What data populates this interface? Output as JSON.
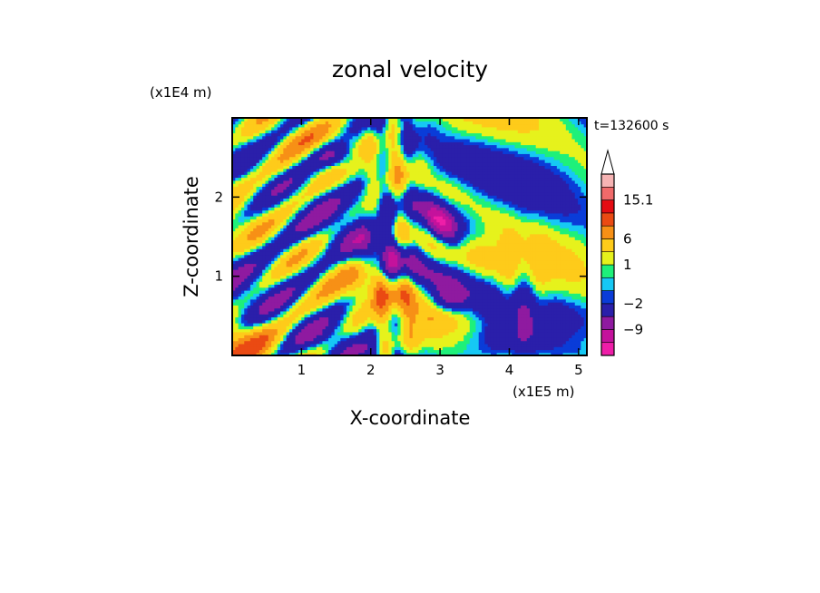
{
  "chart_data": {
    "type": "heatmap",
    "title": "zonal velocity",
    "xlabel": "X-coordinate",
    "ylabel": "Z-coordinate",
    "x_unit": "(x1E5 m)",
    "y_unit": "(x1E4 m)",
    "time_label": "t=132600 s",
    "xlim": [
      0,
      5.12
    ],
    "ylim": [
      0,
      3.0
    ],
    "x_ticks": [
      1,
      2,
      3,
      4,
      5
    ],
    "y_ticks": [
      1,
      2
    ],
    "colorbar": {
      "levels": [
        -15,
        -12,
        -9,
        -6,
        -2,
        -1,
        0,
        1,
        3,
        6,
        9,
        12,
        15.1
      ],
      "colors": [
        "#ee1ea8",
        "#c4129c",
        "#8f1aa0",
        "#2a1faa",
        "#0a3cd8",
        "#16c8f4",
        "#1ef07a",
        "#e6f21c",
        "#fecb1a",
        "#f79016",
        "#ea4a13",
        "#e40c13",
        "#f06a6a",
        "#f6b3b3"
      ],
      "tick_labels": [
        "15.1",
        "6",
        "1",
        "−2",
        "−9"
      ],
      "tick_values": [
        15.1,
        6,
        1,
        -2,
        -9
      ],
      "extend_top": true
    }
  }
}
